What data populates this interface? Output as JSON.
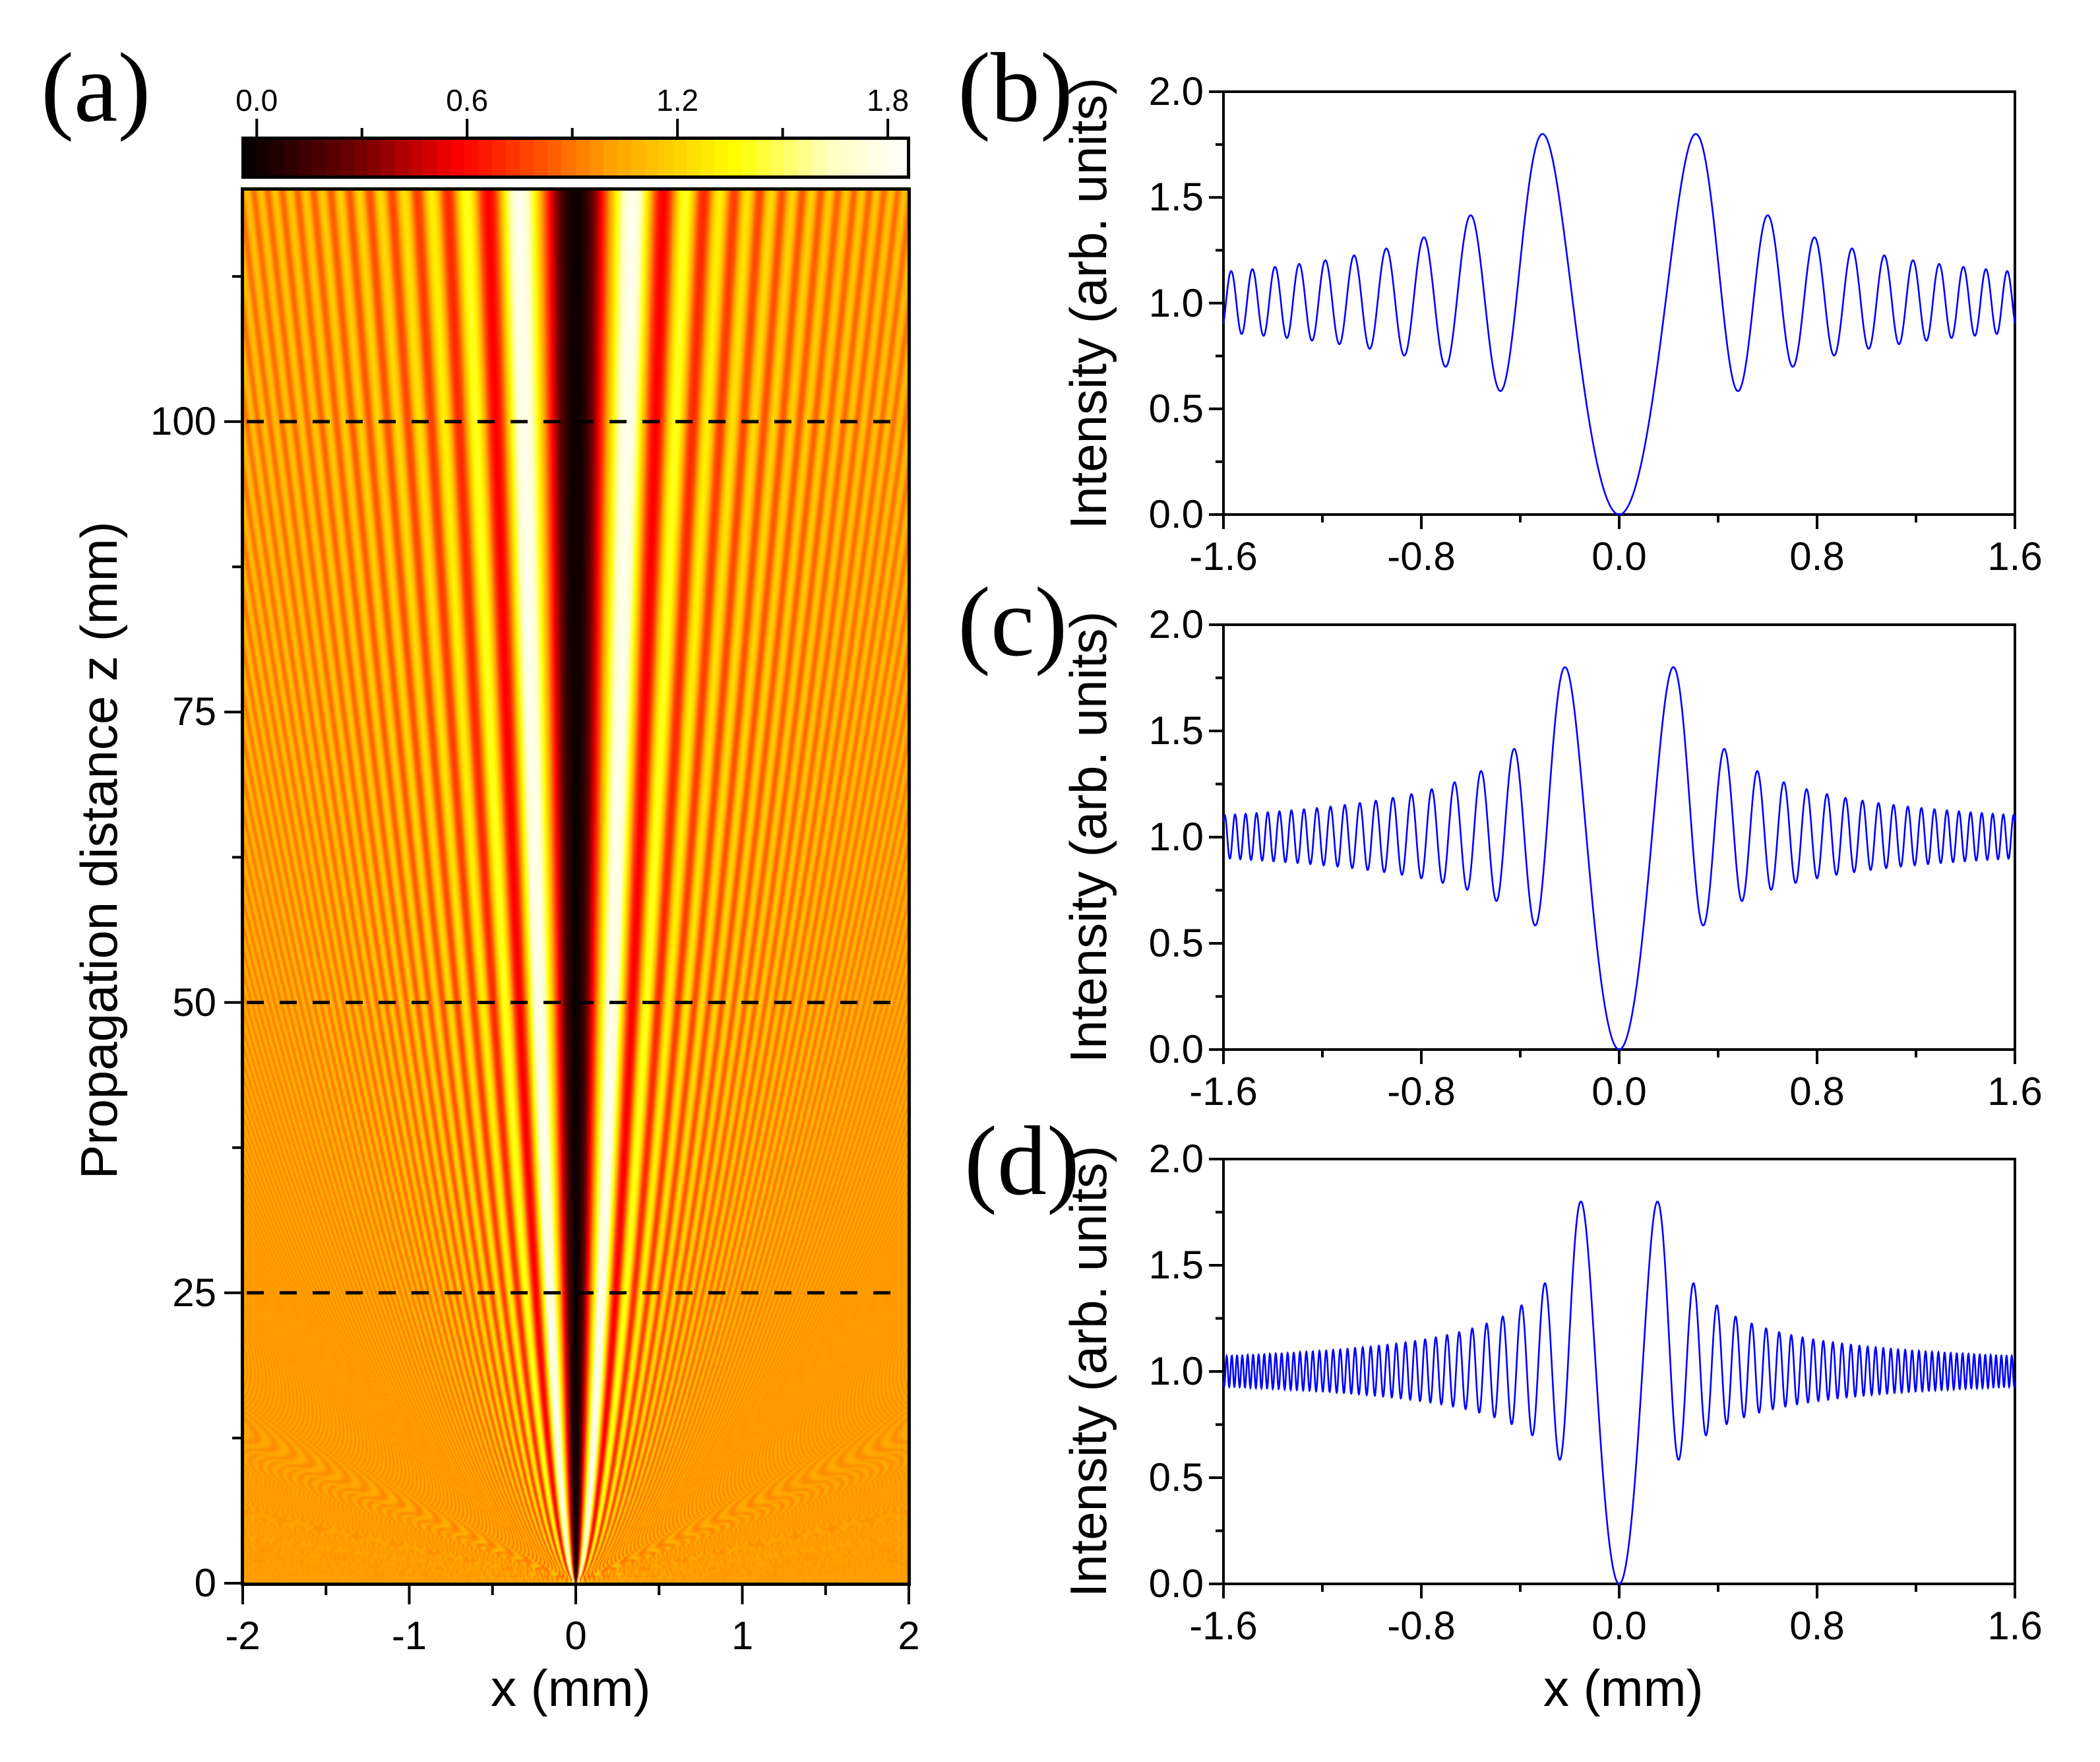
{
  "figure": {
    "panel_labels": [
      "(a)",
      "(b)",
      "(c)",
      "(d)"
    ]
  },
  "chart_data": [
    {
      "panel": "(a)",
      "type": "heatmap",
      "title": "",
      "xlabel": "x (mm)",
      "ylabel": "Propagation distance z (mm)",
      "xlim": [
        -2,
        2
      ],
      "ylim": [
        0,
        120
      ],
      "xticks": [
        -2,
        -1,
        0,
        1,
        2
      ],
      "xtick_labels": [
        "-2",
        "-1",
        "0",
        "1",
        "2"
      ],
      "yticks": [
        0,
        25,
        50,
        75,
        100
      ],
      "ytick_labels": [
        "0",
        "25",
        "50",
        "75",
        "100"
      ],
      "description": "Intensity of a dark (pi-phase-step) beam diffracting along z; central dark null at x=0 with symmetric fringes whose spacing scales with sqrt(z)",
      "reference_lines": [
        {
          "style": "dashed",
          "z": 100,
          "linked_panel": "(b)"
        },
        {
          "style": "dashed",
          "z": 50,
          "linked_panel": "(c)"
        },
        {
          "style": "dashed",
          "z": 25,
          "linked_panel": "(d)"
        }
      ],
      "colorbar": {
        "orientation": "horizontal",
        "placement": "top",
        "range": [
          0.0,
          1.86
        ],
        "ticks": [
          0.0,
          0.6,
          1.2,
          1.8
        ],
        "tick_labels": [
          "0.0",
          "0.6",
          "1.2",
          "1.8"
        ],
        "colormap": "hot",
        "colors": [
          "#000000",
          "#8b0000",
          "#ff0000",
          "#ff6a00",
          "#ffa500",
          "#ffd700",
          "#ffff00",
          "#ffffcc",
          "#ffffff"
        ]
      }
    },
    {
      "panel": "(b)",
      "type": "line",
      "z_mm": 100,
      "xlabel": "",
      "ylabel": "Intensity (arb. units)",
      "xlim": [
        -1.6,
        1.6
      ],
      "ylim": [
        0.0,
        2.0
      ],
      "xticks": [
        -1.6,
        -0.8,
        0.0,
        0.8,
        1.6
      ],
      "xtick_labels": [
        "-1.6",
        "-0.8",
        "0.0",
        "0.8",
        "1.6"
      ],
      "yticks": [
        0.0,
        0.5,
        1.0,
        1.5,
        2.0
      ],
      "ytick_labels": [
        "0.0",
        "0.5",
        "1.0",
        "1.5",
        "2.0"
      ],
      "series": [
        {
          "name": "Intensity at z=100 mm",
          "color": "#0000ff",
          "key_points": {
            "center_min": [
              0.0,
              0.0
            ],
            "main_peaks": [
              [
                -0.31,
                1.8
              ],
              [
                0.31,
                1.8
              ]
            ],
            "first_side_min": [
              [
                -0.45,
                0.59
              ],
              [
                0.45,
                0.59
              ]
            ],
            "second_peaks": [
              [
                -0.6,
                1.41
              ],
              [
                0.6,
                1.41
              ]
            ],
            "edge_oscillation_range": [
              0.86,
              1.15
            ]
          }
        }
      ]
    },
    {
      "panel": "(c)",
      "type": "line",
      "z_mm": 50,
      "xlabel": "",
      "ylabel": "Intensity (arb. units)",
      "xlim": [
        -1.6,
        1.6
      ],
      "ylim": [
        0.0,
        2.0
      ],
      "xticks": [
        -1.6,
        -0.8,
        0.0,
        0.8,
        1.6
      ],
      "xtick_labels": [
        "-1.6",
        "-0.8",
        "0.0",
        "0.8",
        "1.6"
      ],
      "yticks": [
        0.0,
        0.5,
        1.0,
        1.5,
        2.0
      ],
      "ytick_labels": [
        "0.0",
        "0.5",
        "1.0",
        "1.5",
        "2.0"
      ],
      "series": [
        {
          "name": "Intensity at z=50 mm",
          "color": "#0000ff",
          "key_points": {
            "center_min": [
              0.0,
              0.0
            ],
            "main_peaks": [
              [
                -0.22,
                1.8
              ],
              [
                0.22,
                1.8
              ]
            ],
            "first_side_min": [
              [
                -0.32,
                0.59
              ],
              [
                0.32,
                0.59
              ]
            ],
            "second_peaks": [
              [
                -0.42,
                1.41
              ],
              [
                0.42,
                1.41
              ]
            ],
            "edge_oscillation_range": [
              0.9,
              1.1
            ]
          }
        }
      ]
    },
    {
      "panel": "(d)",
      "type": "line",
      "z_mm": 25,
      "xlabel": "x (mm)",
      "ylabel": "Intensity (arb. units)",
      "xlim": [
        -1.6,
        1.6
      ],
      "ylim": [
        0.0,
        2.0
      ],
      "xticks": [
        -1.6,
        -0.8,
        0.0,
        0.8,
        1.6
      ],
      "xtick_labels": [
        "-1.6",
        "-0.8",
        "0.0",
        "0.8",
        "1.6"
      ],
      "yticks": [
        0.0,
        0.5,
        1.0,
        1.5,
        2.0
      ],
      "ytick_labels": [
        "0.0",
        "0.5",
        "1.0",
        "1.5",
        "2.0"
      ],
      "series": [
        {
          "name": "Intensity at z=25 mm",
          "color": "#0000ff",
          "key_points": {
            "center_min": [
              0.0,
              0.0
            ],
            "main_peaks": [
              [
                -0.155,
                1.8
              ],
              [
                0.155,
                1.8
              ]
            ],
            "first_side_min": [
              [
                -0.225,
                0.59
              ],
              [
                0.225,
                0.59
              ]
            ],
            "second_peaks": [
              [
                -0.3,
                1.41
              ],
              [
                0.3,
                1.41
              ]
            ],
            "edge_oscillation_range": [
              0.93,
              1.07
            ]
          }
        }
      ]
    }
  ]
}
